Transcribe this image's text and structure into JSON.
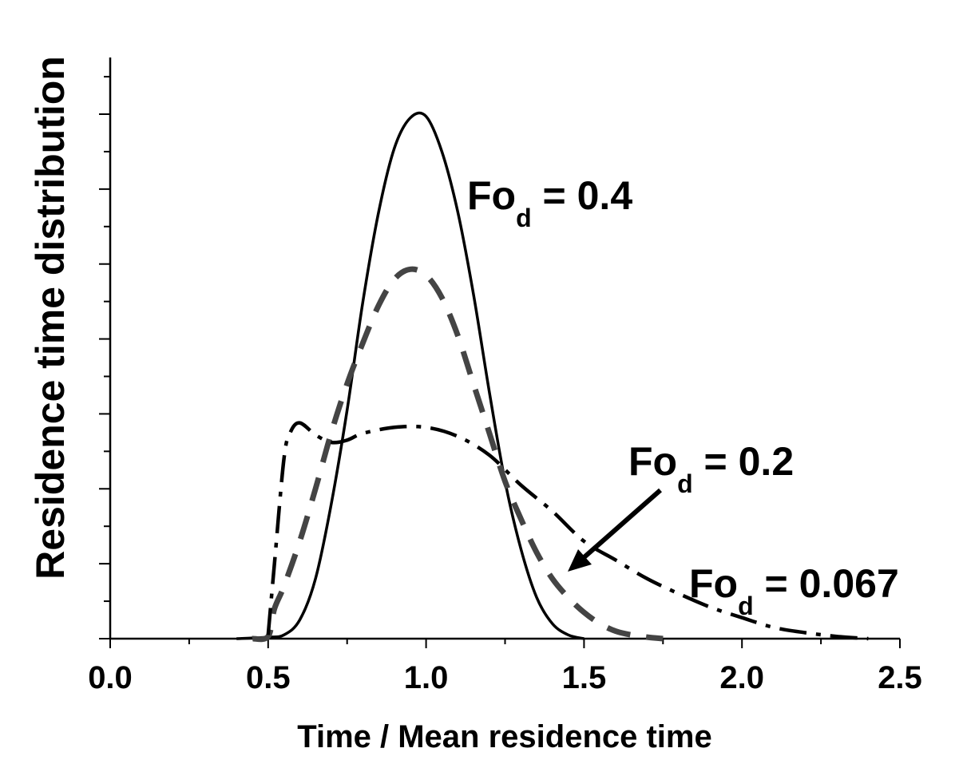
{
  "chart_data": {
    "type": "line",
    "xlabel": "Time / Mean residence time",
    "ylabel": "Residence time distribution",
    "xlim": [
      0.0,
      2.5
    ],
    "ylim": [
      0,
      7
    ],
    "x_ticks": [
      "0.0",
      "0.5",
      "1.0",
      "1.5",
      "2.0",
      "2.5"
    ],
    "y_tick_labels_shown": false,
    "grid": false,
    "legend": "none",
    "series": [
      {
        "style": "solid",
        "x": [
          0.4,
          0.5,
          0.55,
          0.6,
          0.65,
          0.7,
          0.75,
          0.8,
          0.85,
          0.9,
          0.95,
          1.0,
          1.05,
          1.1,
          1.15,
          1.2,
          1.25,
          1.3,
          1.35,
          1.4,
          1.45,
          1.5
        ],
        "y": [
          0.0,
          0.02,
          0.05,
          0.25,
          0.8,
          1.8,
          3.05,
          4.5,
          5.7,
          6.55,
          6.95,
          6.97,
          6.5,
          5.7,
          4.6,
          3.3,
          2.1,
          1.2,
          0.55,
          0.2,
          0.05,
          0.0
        ]
      },
      {
        "style": "dashed",
        "x": [
          0.45,
          0.5,
          0.52,
          0.55,
          0.6,
          0.65,
          0.7,
          0.75,
          0.8,
          0.85,
          0.9,
          0.95,
          1.0,
          1.05,
          1.1,
          1.15,
          1.2,
          1.25,
          1.3,
          1.35,
          1.4,
          1.45,
          1.5,
          1.55,
          1.6,
          1.65,
          1.7,
          1.75
        ],
        "y": [
          0.0,
          0.03,
          0.4,
          0.7,
          1.3,
          2.0,
          2.75,
          3.4,
          3.95,
          4.45,
          4.8,
          4.93,
          4.85,
          4.55,
          4.05,
          3.4,
          2.75,
          2.1,
          1.6,
          1.15,
          0.8,
          0.55,
          0.35,
          0.2,
          0.1,
          0.05,
          0.02,
          0.0
        ]
      },
      {
        "style": "dash-dot",
        "x": [
          0.5,
          0.52,
          0.55,
          0.57,
          0.6,
          0.65,
          0.7,
          0.75,
          0.8,
          0.9,
          1.0,
          1.1,
          1.2,
          1.3,
          1.4,
          1.5,
          1.6,
          1.7,
          1.8,
          1.9,
          2.0,
          2.1,
          2.2,
          2.3,
          2.4
        ],
        "y": [
          0.05,
          1.0,
          2.4,
          2.75,
          2.88,
          2.72,
          2.62,
          2.65,
          2.74,
          2.82,
          2.82,
          2.7,
          2.45,
          2.05,
          1.7,
          1.3,
          1.05,
          0.8,
          0.6,
          0.42,
          0.28,
          0.15,
          0.08,
          0.03,
          0.0
        ]
      }
    ],
    "annotations": [
      {
        "text": "Fo",
        "sub": "d",
        "tail": " = 0.4"
      },
      {
        "text": "Fo",
        "sub": "d",
        "tail": " = 0.2"
      },
      {
        "text": "Fo",
        "sub": "d",
        "tail": " = 0.067"
      }
    ]
  }
}
